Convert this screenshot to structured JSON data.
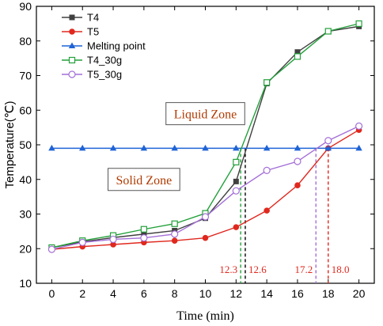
{
  "chart_data": {
    "type": "line",
    "xlabel": "Time (min)",
    "ylabel": "Temperature(℃)",
    "xlim": [
      -1,
      21
    ],
    "ylim": [
      10,
      90
    ],
    "xticks": [
      0,
      2,
      4,
      6,
      8,
      10,
      12,
      14,
      16,
      18,
      20
    ],
    "yticks": [
      10,
      20,
      30,
      40,
      50,
      60,
      70,
      80,
      90
    ],
    "legend_position": "top-left",
    "series": [
      {
        "name": "T4",
        "color": "#404040",
        "marker": "square-filled",
        "x": [
          0,
          2,
          4,
          6,
          8,
          10,
          12,
          14,
          16,
          18,
          20
        ],
        "y": [
          20.3,
          22.0,
          23.2,
          24.2,
          25.2,
          28.8,
          39.4,
          67.7,
          76.8,
          82.8,
          84.2
        ]
      },
      {
        "name": "T5",
        "color": "#e0281e",
        "marker": "circle-filled",
        "x": [
          0,
          2,
          4,
          6,
          8,
          10,
          12,
          14,
          16,
          18,
          20
        ],
        "y": [
          19.8,
          20.6,
          21.2,
          21.8,
          22.3,
          23.1,
          26.2,
          31.0,
          38.3,
          49.0,
          54.3
        ]
      },
      {
        "name": "Melting point",
        "color": "#1f63d6",
        "marker": "triangle-filled",
        "x": [
          0,
          2,
          4,
          6,
          8,
          10,
          12,
          14,
          16,
          18,
          20
        ],
        "y": [
          49,
          49,
          49,
          49,
          49,
          49,
          49,
          49,
          49,
          49,
          49
        ]
      },
      {
        "name": "T4_30g",
        "color": "#22a03a",
        "marker": "square-open",
        "x": [
          0,
          2,
          4,
          6,
          8,
          10,
          12,
          14,
          16,
          18,
          20
        ],
        "y": [
          20.3,
          22.3,
          23.8,
          25.6,
          27.2,
          30.2,
          45.0,
          68.0,
          75.5,
          82.8,
          85.0
        ]
      },
      {
        "name": "T5_30g",
        "color": "#a46fd8",
        "marker": "circle-open",
        "x": [
          0,
          2,
          4,
          6,
          8,
          10,
          12,
          14,
          16,
          18,
          20
        ],
        "y": [
          19.8,
          21.8,
          22.7,
          23.1,
          24.2,
          29.2,
          36.7,
          42.6,
          45.2,
          51.2,
          55.4
        ]
      }
    ],
    "zones": [
      {
        "label": "Liquid Zone",
        "x": 10,
        "y": 59
      },
      {
        "label": "Solid Zone",
        "x": 6,
        "y": 40
      }
    ],
    "annotations": [
      {
        "label": "12.3",
        "x": 12.3,
        "color": "#22a03a"
      },
      {
        "label": "12.6",
        "x": 12.6,
        "color": "#000000"
      },
      {
        "label": "17.2",
        "x": 17.2,
        "color": "#a46fd8"
      },
      {
        "label": "18.0",
        "x": 18.0,
        "color": "#e0281e"
      }
    ],
    "annotation_y": 49
  }
}
